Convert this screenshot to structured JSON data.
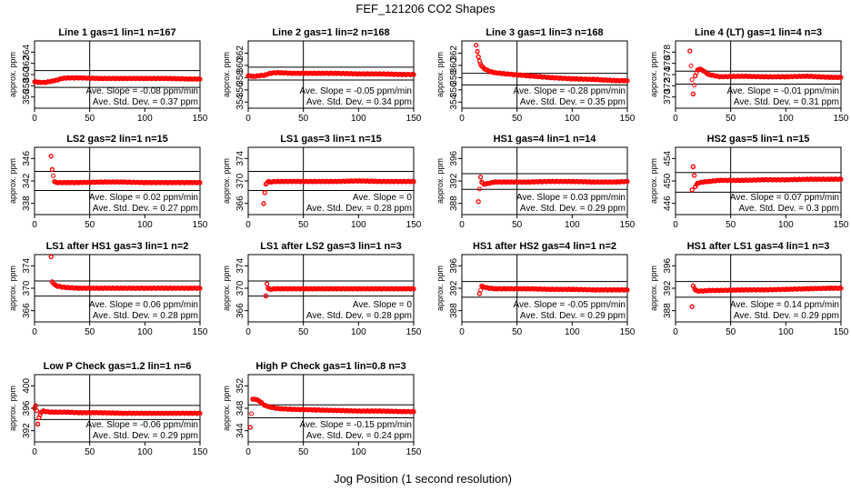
{
  "figure": {
    "title": "FEF_121206  CO2 Shapes",
    "xlabel": "Jog Position (1 second resolution)",
    "ylabel": "approx. ppm",
    "point_color": "#ff0000",
    "line_color": "#000000"
  },
  "chart_data": [
    {
      "type": "scatter",
      "title": "Line 1 gas=1 lin=1 n=167",
      "xlim": [
        0,
        150
      ],
      "xticks": [
        0,
        50,
        100,
        150
      ],
      "ylim": [
        354,
        366
      ],
      "yticks": [
        356,
        358,
        360,
        362,
        364
      ],
      "hlines": [
        360.7,
        357.7
      ],
      "vline": 50,
      "slope_text": "Ave. Slope = -0.08  ppm/min",
      "std_text": "Ave. Std. Dev. = 0.37  ppm",
      "series": [
        {
          "x": [
            0,
            5,
            10,
            15,
            20,
            25,
            30,
            40,
            60,
            80,
            100,
            120,
            140,
            150
          ],
          "y": [
            358.7,
            358.6,
            358.6,
            358.8,
            359.0,
            359.3,
            359.4,
            359.4,
            359.3,
            359.3,
            359.3,
            359.3,
            359.2,
            359.2
          ]
        }
      ]
    },
    {
      "type": "scatter",
      "title": "Line 2 gas=1 lin=2 n=168",
      "xlim": [
        0,
        150
      ],
      "xticks": [
        0,
        50,
        100,
        150
      ],
      "ylim": [
        353,
        364
      ],
      "yticks": [
        354,
        356,
        358,
        360,
        362
      ],
      "hlines": [
        359.7,
        357.6
      ],
      "vline": 50,
      "slope_text": "Ave. Slope = -0.05  ppm/min",
      "std_text": "Ave. Std. Dev. = 0.34  ppm",
      "series": [
        {
          "x": [
            0,
            5,
            10,
            15,
            20,
            25,
            30,
            40,
            60,
            80,
            100,
            120,
            140,
            150
          ],
          "y": [
            358.3,
            358.2,
            358.3,
            358.4,
            358.7,
            358.8,
            358.8,
            358.7,
            358.7,
            358.7,
            358.6,
            358.6,
            358.5,
            358.5
          ]
        }
      ]
    },
    {
      "type": "scatter",
      "title": "Line 3 gas=1 lin=3 n=168",
      "xlim": [
        0,
        150
      ],
      "xticks": [
        0,
        50,
        100,
        150
      ],
      "ylim": [
        353,
        364
      ],
      "yticks": [
        354,
        356,
        358,
        360,
        362
      ],
      "hlines": [
        358.7,
        356.8
      ],
      "vline": 50,
      "slope_text": "Ave. Slope = -0.28  ppm/min",
      "std_text": "Ave. Std. Dev. = 0.35  ppm",
      "series": [
        {
          "x": [
            13,
            14,
            15,
            16,
            17,
            18,
            20,
            25,
            30,
            40,
            60,
            80,
            100,
            120,
            140,
            150
          ],
          "y": [
            363.3,
            362.3,
            361.4,
            360.7,
            360.2,
            359.9,
            359.5,
            359.0,
            358.8,
            358.6,
            358.3,
            358.0,
            357.8,
            357.7,
            357.5,
            357.5
          ]
        }
      ]
    },
    {
      "type": "scatter",
      "title": "Line 4 (LT) gas=1 lin=4 n=3",
      "xlim": [
        0,
        150
      ],
      "xticks": [
        0,
        50,
        100,
        150
      ],
      "ylim": [
        368,
        380
      ],
      "yticks": [
        370,
        372,
        374,
        376,
        378
      ],
      "hlines": [
        374.6,
        372.3
      ],
      "vline": 50,
      "slope_text": "Ave. Slope = -0.01  ppm/min",
      "std_text": "Ave. Std. Dev. = 0.31  ppm",
      "series": [
        {
          "x": [
            13,
            16,
            18,
            20,
            22,
            25,
            30,
            40,
            60,
            80,
            100,
            120,
            140,
            150
          ],
          "y": [
            378.2,
            370.5,
            373.8,
            374.8,
            375.0,
            374.7,
            374.0,
            373.6,
            373.7,
            373.6,
            373.6,
            373.7,
            373.5,
            373.5
          ]
        }
      ]
    },
    {
      "type": "scatter",
      "title": "LS2 gas=2 lin=1 n=15",
      "xlim": [
        0,
        150
      ],
      "xticks": [
        0,
        50,
        100,
        150
      ],
      "ylim": [
        336,
        348
      ],
      "yticks": [
        338,
        342,
        346
      ],
      "hlines": [
        343.7,
        340.3
      ],
      "vline": 50,
      "slope_text": "Ave. Slope = 0.02  ppm/min",
      "std_text": "Ave. Std. Dev. = 0.27  ppm",
      "series": [
        {
          "x": [
            15,
            16,
            18,
            20,
            25,
            30,
            40,
            60,
            80,
            100,
            120,
            140,
            150
          ],
          "y": [
            346.4,
            344.0,
            341.9,
            341.7,
            341.7,
            341.7,
            341.7,
            341.8,
            341.8,
            341.7,
            341.7,
            341.7,
            341.7
          ]
        }
      ]
    },
    {
      "type": "scatter",
      "title": "LS1 gas=3 lin=1 n=15",
      "xlim": [
        0,
        150
      ],
      "xticks": [
        0,
        50,
        100,
        150
      ],
      "ylim": [
        364,
        376
      ],
      "yticks": [
        366,
        370,
        374
      ],
      "hlines": [
        371.7,
        368.3
      ],
      "vline": 50,
      "slope_text": "Ave. Slope = 0",
      "std_text": "Ave. Std. Dev. = 0.28  ppm",
      "series": [
        {
          "x": [
            14,
            15,
            16,
            18,
            20,
            25,
            30,
            40,
            60,
            80,
            100,
            120,
            140,
            150
          ],
          "y": [
            366.0,
            367.9,
            369.4,
            369.9,
            369.8,
            369.9,
            369.9,
            369.9,
            369.9,
            369.9,
            370.0,
            369.9,
            369.9,
            369.9
          ]
        }
      ]
    },
    {
      "type": "scatter",
      "title": "HS1 gas=4 lin=1 n=14",
      "xlim": [
        0,
        150
      ],
      "xticks": [
        0,
        50,
        100,
        150
      ],
      "ylim": [
        386,
        398
      ],
      "yticks": [
        388,
        392,
        396
      ],
      "hlines": [
        393.3,
        390.5
      ],
      "vline": 50,
      "slope_text": "Ave. Slope = 0.03  ppm/min",
      "std_text": "Ave. Std. Dev. = 0.29  ppm",
      "series": [
        {
          "x": [
            15,
            17,
            18,
            20,
            25,
            30,
            40,
            60,
            80,
            100,
            120,
            140,
            150
          ],
          "y": [
            388.3,
            392.7,
            391.8,
            391.4,
            391.6,
            391.8,
            391.8,
            391.8,
            391.9,
            391.9,
            391.8,
            391.8,
            391.9
          ]
        }
      ]
    },
    {
      "type": "scatter",
      "title": "HS2 gas=5 lin=1 n=15",
      "xlim": [
        0,
        150
      ],
      "xticks": [
        0,
        50,
        100,
        150
      ],
      "ylim": [
        444,
        456
      ],
      "yticks": [
        446,
        450,
        454
      ],
      "hlines": [
        451.5,
        448.0
      ],
      "vline": 50,
      "slope_text": "Ave. Slope = 0.07  ppm/min",
      "std_text": "Ave. Std. Dev. = 0.3  ppm",
      "series": [
        {
          "x": [
            15,
            16,
            17,
            18,
            20,
            25,
            30,
            40,
            60,
            80,
            100,
            120,
            140,
            150
          ],
          "y": [
            448.4,
            452.5,
            451.0,
            449.0,
            449.6,
            449.8,
            449.9,
            450.1,
            450.1,
            450.2,
            450.2,
            450.3,
            450.3,
            450.3
          ]
        }
      ]
    },
    {
      "type": "scatter",
      "title": "LS1 after HS1 gas=3 lin=1 n=2",
      "xlim": [
        0,
        150
      ],
      "xticks": [
        0,
        50,
        100,
        150
      ],
      "ylim": [
        364,
        376
      ],
      "yticks": [
        366,
        370,
        374
      ],
      "hlines": [
        371.3,
        368.6
      ],
      "vline": 50,
      "slope_text": "Ave. Slope = 0.06  ppm/min",
      "std_text": "Ave. Std. Dev. = 0.28  ppm",
      "series": [
        {
          "x": [
            15,
            16,
            18,
            20,
            25,
            30,
            40,
            60,
            80,
            100,
            120,
            140,
            150
          ],
          "y": [
            375.6,
            371.1,
            370.7,
            370.4,
            370.2,
            370.1,
            370.0,
            370.0,
            370.0,
            370.0,
            370.0,
            370.0,
            370.0
          ]
        }
      ]
    },
    {
      "type": "scatter",
      "title": "LS1 after LS2 gas=3 lin=1 n=3",
      "xlim": [
        0,
        150
      ],
      "xticks": [
        0,
        50,
        100,
        150
      ],
      "ylim": [
        364,
        376
      ],
      "yticks": [
        366,
        370,
        374
      ],
      "hlines": [
        371.3,
        368.6
      ],
      "vline": 50,
      "slope_text": "Ave. Slope = 0",
      "std_text": "Ave. Std. Dev. = 0.28  ppm",
      "series": [
        {
          "x": [
            16,
            17,
            18,
            20,
            25,
            30,
            40,
            60,
            80,
            100,
            120,
            140,
            150
          ],
          "y": [
            368.6,
            370.8,
            370.0,
            369.8,
            369.9,
            369.9,
            369.9,
            369.9,
            369.9,
            369.9,
            369.9,
            369.9,
            369.9
          ]
        }
      ]
    },
    {
      "type": "scatter",
      "title": "HS1 after HS2 gas=4 lin=1 n=2",
      "xlim": [
        0,
        150
      ],
      "xticks": [
        0,
        50,
        100,
        150
      ],
      "ylim": [
        386,
        398
      ],
      "yticks": [
        388,
        392,
        396
      ],
      "hlines": [
        393.2,
        390.4
      ],
      "vline": 50,
      "slope_text": "Ave. Slope = -0.05  ppm/min",
      "std_text": "Ave. Std. Dev. = 0.29  ppm",
      "series": [
        {
          "x": [
            16,
            18,
            20,
            25,
            30,
            40,
            60,
            80,
            100,
            120,
            140,
            150
          ],
          "y": [
            391.0,
            392.4,
            392.2,
            392.0,
            391.9,
            391.9,
            391.9,
            391.8,
            391.8,
            391.7,
            391.7,
            391.7
          ]
        }
      ]
    },
    {
      "type": "scatter",
      "title": "HS1 after LS1 gas=4 lin=1 n=3",
      "xlim": [
        0,
        150
      ],
      "xticks": [
        0,
        50,
        100,
        150
      ],
      "ylim": [
        386,
        398
      ],
      "yticks": [
        388,
        392,
        396
      ],
      "hlines": [
        393.2,
        390.4
      ],
      "vline": 50,
      "slope_text": "Ave. Slope = 0.14  ppm/min",
      "std_text": "Ave. Std. Dev. = 0.29  ppm",
      "series": [
        {
          "x": [
            15,
            16,
            18,
            20,
            25,
            30,
            40,
            60,
            80,
            100,
            120,
            140,
            150
          ],
          "y": [
            388.7,
            392.4,
            391.7,
            391.5,
            391.5,
            391.6,
            391.6,
            391.7,
            391.7,
            391.8,
            391.9,
            392.0,
            392.0
          ]
        }
      ]
    },
    {
      "type": "scatter",
      "title": "Low P Check gas=1.2 lin=1 n=6",
      "xlim": [
        0,
        150
      ],
      "xticks": [
        0,
        50,
        100,
        150
      ],
      "ylim": [
        390,
        402
      ],
      "yticks": [
        392,
        396,
        400
      ],
      "hlines": [
        396.5,
        394.0
      ],
      "vline": 50,
      "slope_text": "Ave. Slope = -0.06  ppm/min",
      "std_text": "Ave. Std. Dev. = 0.29  ppm",
      "series": [
        {
          "x": [
            0,
            1,
            2,
            3,
            4,
            5,
            6,
            8,
            10,
            15,
            20,
            30,
            40,
            60,
            80,
            100,
            120,
            140,
            150
          ],
          "y": [
            396.0,
            396.4,
            395.6,
            393.2,
            394.3,
            394.8,
            395.3,
            395.5,
            395.4,
            395.3,
            395.3,
            395.3,
            395.2,
            395.2,
            395.1,
            395.1,
            395.1,
            395.1,
            395.1
          ]
        }
      ]
    },
    {
      "type": "scatter",
      "title": "High P Check gas=1 lin=0.8 n=3",
      "xlim": [
        0,
        150
      ],
      "xticks": [
        0,
        50,
        100,
        150
      ],
      "ylim": [
        342,
        354
      ],
      "yticks": [
        344,
        348,
        352
      ],
      "hlines": [
        348.6,
        346.3
      ],
      "vline": 50,
      "slope_text": "Ave. Slope = -0.15  ppm/min",
      "std_text": "Ave. Std. Dev. = 0.24  ppm",
      "series": [
        {
          "x": [
            2,
            4,
            6,
            8,
            10,
            12,
            15,
            20,
            25,
            30,
            40,
            60,
            80,
            100,
            120,
            140,
            150
          ],
          "y": [
            344.6,
            349.6,
            349.6,
            349.5,
            349.3,
            349.0,
            348.5,
            348.2,
            348.0,
            347.9,
            347.8,
            347.7,
            347.6,
            347.5,
            347.5,
            347.4,
            347.4
          ]
        }
      ]
    }
  ]
}
